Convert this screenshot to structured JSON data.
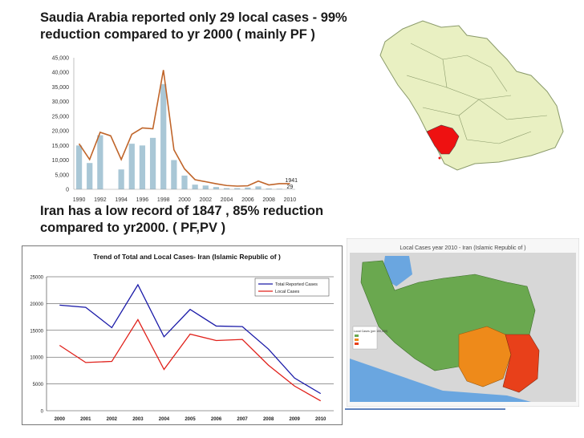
{
  "headings": {
    "saudi": "Saudia Arabia reported only 29 local cases - 99% reduction  compared to yr 2000 ( mainly PF )",
    "iran": "Iran has a low record of 1847 , 85% reduction compared to yr2000. ( PF,PV )"
  },
  "chart_data": [
    {
      "type": "bar",
      "title": "",
      "xlabel": "",
      "ylabel": "",
      "x": [
        1990,
        1991,
        1992,
        1993,
        1994,
        1995,
        1996,
        1997,
        1998,
        1999,
        2000,
        2001,
        2002,
        2003,
        2004,
        2005,
        2006,
        2007,
        2008,
        2009,
        2010
      ],
      "x_tick_labels": [
        "1990",
        "1992",
        "1994",
        "1996",
        "1998",
        "2000",
        "2002",
        "2004",
        "2006",
        "2008",
        "2010"
      ],
      "y_tick_labels": [
        "0",
        "5,000",
        "10,000",
        "15,000",
        "20,000",
        "25,000",
        "30,000",
        "35,000",
        "40,000",
        "45,000"
      ],
      "ylim": [
        0,
        45000
      ],
      "series": [
        {
          "kind": "bar",
          "color": "#a9c7d6",
          "values": [
            15000,
            9000,
            18500,
            0,
            6800,
            15600,
            15000,
            17600,
            36000,
            10000,
            4700,
            1600,
            1300,
            800,
            400,
            400,
            600,
            1000,
            300,
            200,
            29
          ]
        },
        {
          "kind": "line",
          "color": "#c0652a",
          "values": [
            15600,
            10200,
            19500,
            18300,
            10200,
            18800,
            21000,
            20700,
            40800,
            13500,
            7000,
            3300,
            2600,
            1900,
            1300,
            1100,
            1200,
            2800,
            1500,
            1941,
            1941
          ]
        }
      ],
      "annotations": [
        "1941",
        "29"
      ],
      "grid": false,
      "legend": "none"
    },
    {
      "type": "line",
      "title": "Trend of Total and Local Cases- Iran (Islamic Republic of )",
      "xlabel": "",
      "ylabel": "",
      "categories": [
        "2000",
        "2001",
        "2002",
        "2003",
        "2004",
        "2005",
        "2006",
        "2007",
        "2008",
        "2009",
        "2010"
      ],
      "y_tick_labels": [
        "0",
        "5000",
        "10000",
        "15000",
        "20000",
        "25000"
      ],
      "ylim": [
        0,
        25000
      ],
      "grid": true,
      "legend": "top-right",
      "series": [
        {
          "name": "Total Reported Cases",
          "color": "#1a1aa8",
          "values": [
            19700,
            19300,
            15500,
            23500,
            13800,
            18900,
            15800,
            15700,
            11500,
            6100,
            3200
          ]
        },
        {
          "name": "Local Cases",
          "color": "#e0201a",
          "values": [
            12200,
            9000,
            9200,
            17000,
            7700,
            14300,
            13100,
            13300,
            8500,
            4600,
            1847
          ]
        }
      ]
    }
  ],
  "maps": {
    "iran_map": {
      "title": "Local Cases year 2010 - Iran (Islamic Republic of )",
      "legend_title": "Local Cases (per 100,000)",
      "colors": {
        "low": "#6aa84f",
        "medium": "#ee8a1a",
        "high": "#e8401a",
        "sea": "#6aa6e0",
        "land": "#d7d7d7"
      }
    },
    "saudi_map": {
      "colors": {
        "land": "#e9f0c2",
        "highlight": "#ee1111",
        "border": "#8a9a6a"
      }
    }
  }
}
